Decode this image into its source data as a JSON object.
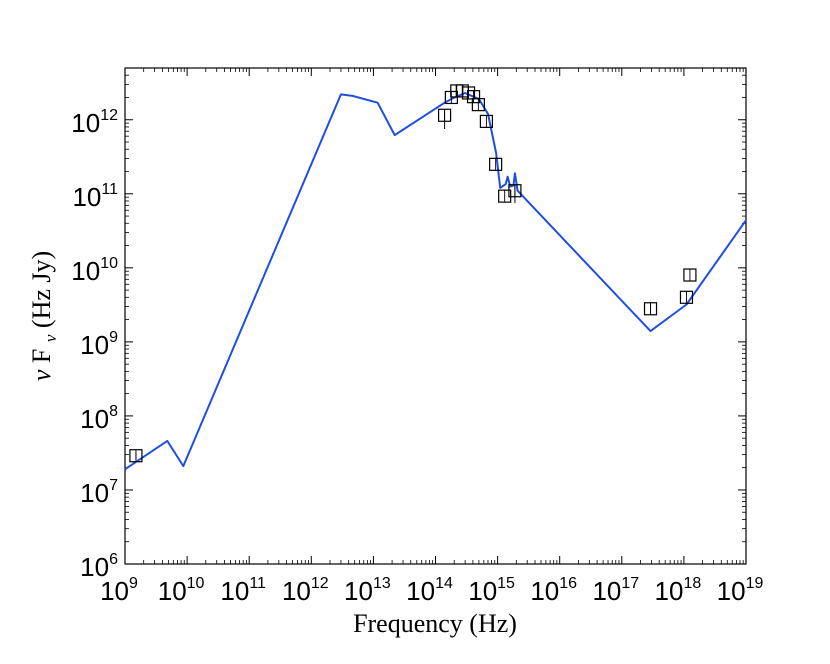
{
  "chart_data": {
    "type": "scatter",
    "title": "",
    "xlabel": "Frequency (Hz)",
    "ylabel": "ν F_ν (Hz Jy)",
    "ylabel_parts": {
      "nu": "ν",
      "F": " F",
      "sub": "ν",
      "units": " (Hz Jy)"
    },
    "x_scale": "log",
    "y_scale": "log",
    "xlim": [
      1000000000.0,
      1e+19
    ],
    "ylim": [
      1000000.0,
      5000000000000.0
    ],
    "x_tick_labels": [
      {
        "base": "10",
        "exp": "9",
        "value": 1000000000.0
      },
      {
        "base": "10",
        "exp": "10",
        "value": 10000000000.0
      },
      {
        "base": "10",
        "exp": "11",
        "value": 100000000000.0
      },
      {
        "base": "10",
        "exp": "12",
        "value": 1000000000000.0
      },
      {
        "base": "10",
        "exp": "13",
        "value": 10000000000000.0
      },
      {
        "base": "10",
        "exp": "14",
        "value": 100000000000000.0
      },
      {
        "base": "10",
        "exp": "15",
        "value": 1000000000000000.0
      },
      {
        "base": "10",
        "exp": "16",
        "value": 1e+16
      },
      {
        "base": "10",
        "exp": "17",
        "value": 1e+17
      },
      {
        "base": "10",
        "exp": "18",
        "value": 1e+18
      },
      {
        "base": "10",
        "exp": "19",
        "value": 1e+19
      }
    ],
    "y_tick_labels": [
      {
        "base": "10",
        "exp": "6",
        "value": 1000000.0
      },
      {
        "base": "10",
        "exp": "7",
        "value": 10000000.0
      },
      {
        "base": "10",
        "exp": "8",
        "value": 100000000.0
      },
      {
        "base": "10",
        "exp": "9",
        "value": 1000000000.0
      },
      {
        "base": "10",
        "exp": "10",
        "value": 10000000000.0
      },
      {
        "base": "10",
        "exp": "11",
        "value": 100000000000.0
      },
      {
        "base": "10",
        "exp": "12",
        "value": 1000000000000.0
      }
    ],
    "grid": false,
    "legend": "none",
    "colors": {
      "model": "#1f4fe0",
      "points": "#000000"
    },
    "series": [
      {
        "kind": "line",
        "points": [
          [
            1000000000.0,
            19000000.0
          ],
          [
            4800000000.0,
            46000000.0
          ],
          [
            8700000000.0,
            21000000.0
          ],
          [
            3000000000000.0,
            2200000000000.0
          ],
          [
            4600000000000.0,
            2100000000000.0
          ],
          [
            11700000000000.0,
            1700000000000.0
          ],
          [
            22000000000000.0,
            620000000000.0
          ],
          [
            140000000000000.0,
            1700000000000.0
          ],
          [
            190000000000000.0,
            1950000000000.0
          ],
          [
            300000000000000.0,
            2300000000000.0
          ],
          [
            500000000000000.0,
            1900000000000.0
          ],
          [
            700000000000000.0,
            1200000000000.0
          ],
          [
            950000000000000.0,
            350000000000.0
          ],
          [
            1100000000000000.0,
            120000000000.0
          ],
          [
            1350000000000000.0,
            135000000000.0
          ],
          [
            1450000000000000.0,
            170000000000.0
          ],
          [
            1600000000000000.0,
            125000000000.0
          ],
          [
            1800000000000000.0,
            130000000000.0
          ],
          [
            1900000000000000.0,
            190000000000.0
          ],
          [
            2100000000000000.0,
            110000000000.0
          ],
          [
            2.9e+17,
            1400000000.0
          ],
          [
            1.1e+18,
            3200000000.0
          ],
          [
            1e+19,
            44000000000.0
          ]
        ]
      },
      {
        "kind": "points",
        "marker": "open-square",
        "points": [
          [
            1500000000.0,
            29000000.0
          ],
          [
            140000000000000.0,
            1150000000000.0
          ],
          [
            180000000000000.0,
            2000000000000.0
          ],
          [
            220000000000000.0,
            2450000000000.0
          ],
          [
            270000000000000.0,
            2450000000000.0
          ],
          [
            340000000000000.0,
            2300000000000.0
          ],
          [
            410000000000000.0,
            2050000000000.0
          ],
          [
            490000000000000.0,
            1600000000000.0
          ],
          [
            660000000000000.0,
            950000000000.0
          ],
          [
            930000000000000.0,
            250000000000.0
          ],
          [
            1300000000000000.0,
            93000000000.0
          ],
          [
            1900000000000000.0,
            110000000000.0
          ],
          [
            2.9e+17,
            2800000000.0
          ],
          [
            1.1e+18,
            4000000000.0
          ],
          [
            1.25e+18,
            8000000000.0
          ]
        ],
        "y_error": [
          [
            1500000000.0,
            26000000.0,
            32000000.0
          ],
          [
            140000000000000.0,
            750000000000.0,
            1400000000000.0
          ],
          [
            1900000000000000.0,
            75000000000.0,
            130000000000.0
          ],
          [
            2.9e+17,
            2300000000.0,
            3300000000.0
          ]
        ]
      }
    ]
  }
}
